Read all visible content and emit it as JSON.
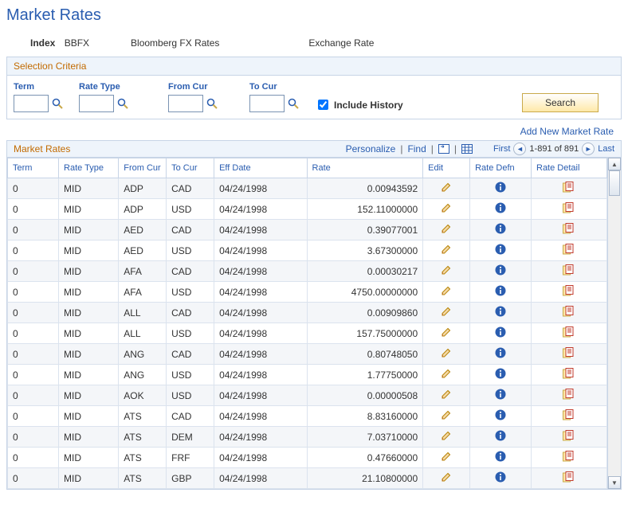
{
  "page": {
    "title": "Market Rates"
  },
  "index": {
    "label": "Index",
    "code": "BBFX",
    "desc": "Bloomberg FX Rates",
    "rate_label": "Exchange Rate"
  },
  "criteria": {
    "panel_title": "Selection Criteria",
    "term": {
      "label": "Term",
      "value": ""
    },
    "rate_type": {
      "label": "Rate Type",
      "value": ""
    },
    "from_cur": {
      "label": "From Cur",
      "value": ""
    },
    "to_cur": {
      "label": "To Cur",
      "value": ""
    },
    "include_history": {
      "label": "Include History",
      "checked": true
    },
    "search_label": "Search"
  },
  "add_link": "Add New Market Rate",
  "grid": {
    "title": "Market Rates",
    "actions": {
      "personalize": "Personalize",
      "find": "Find",
      "first": "First",
      "last": "Last",
      "range": "1-891 of 891"
    },
    "columns": {
      "term": "Term",
      "rate_type": "Rate Type",
      "from_cur": "From Cur",
      "to_cur": "To Cur",
      "eff_date": "Eff Date",
      "rate": "Rate",
      "edit": "Edit",
      "rate_defn": "Rate Defn",
      "rate_detail": "Rate Detail"
    },
    "rows": [
      {
        "term": "0",
        "rate_type": "MID",
        "from": "ADP",
        "to": "CAD",
        "eff": "04/24/1998",
        "rate": "0.00943592"
      },
      {
        "term": "0",
        "rate_type": "MID",
        "from": "ADP",
        "to": "USD",
        "eff": "04/24/1998",
        "rate": "152.11000000"
      },
      {
        "term": "0",
        "rate_type": "MID",
        "from": "AED",
        "to": "CAD",
        "eff": "04/24/1998",
        "rate": "0.39077001"
      },
      {
        "term": "0",
        "rate_type": "MID",
        "from": "AED",
        "to": "USD",
        "eff": "04/24/1998",
        "rate": "3.67300000"
      },
      {
        "term": "0",
        "rate_type": "MID",
        "from": "AFA",
        "to": "CAD",
        "eff": "04/24/1998",
        "rate": "0.00030217"
      },
      {
        "term": "0",
        "rate_type": "MID",
        "from": "AFA",
        "to": "USD",
        "eff": "04/24/1998",
        "rate": "4750.00000000"
      },
      {
        "term": "0",
        "rate_type": "MID",
        "from": "ALL",
        "to": "CAD",
        "eff": "04/24/1998",
        "rate": "0.00909860"
      },
      {
        "term": "0",
        "rate_type": "MID",
        "from": "ALL",
        "to": "USD",
        "eff": "04/24/1998",
        "rate": "157.75000000"
      },
      {
        "term": "0",
        "rate_type": "MID",
        "from": "ANG",
        "to": "CAD",
        "eff": "04/24/1998",
        "rate": "0.80748050"
      },
      {
        "term": "0",
        "rate_type": "MID",
        "from": "ANG",
        "to": "USD",
        "eff": "04/24/1998",
        "rate": "1.77750000"
      },
      {
        "term": "0",
        "rate_type": "MID",
        "from": "AOK",
        "to": "USD",
        "eff": "04/24/1998",
        "rate": "0.00000508"
      },
      {
        "term": "0",
        "rate_type": "MID",
        "from": "ATS",
        "to": "CAD",
        "eff": "04/24/1998",
        "rate": "8.83160000"
      },
      {
        "term": "0",
        "rate_type": "MID",
        "from": "ATS",
        "to": "DEM",
        "eff": "04/24/1998",
        "rate": "7.03710000"
      },
      {
        "term": "0",
        "rate_type": "MID",
        "from": "ATS",
        "to": "FRF",
        "eff": "04/24/1998",
        "rate": "0.47660000"
      },
      {
        "term": "0",
        "rate_type": "MID",
        "from": "ATS",
        "to": "GBP",
        "eff": "04/24/1998",
        "rate": "21.10800000"
      }
    ]
  },
  "colors": {
    "link": "#2a5db0",
    "panel_title": "#c26a00",
    "panel_bg": "#eef4fb",
    "border": "#c7d4e6",
    "row_odd": "#f4f6f9",
    "row_even": "#ffffff"
  },
  "col_widths": {
    "term": 55,
    "rate_type": 68,
    "from_cur": 50,
    "to_cur": 50,
    "eff_date": 110,
    "rate": 140,
    "edit": 50,
    "rate_defn": 70,
    "rate_detail": 90
  }
}
